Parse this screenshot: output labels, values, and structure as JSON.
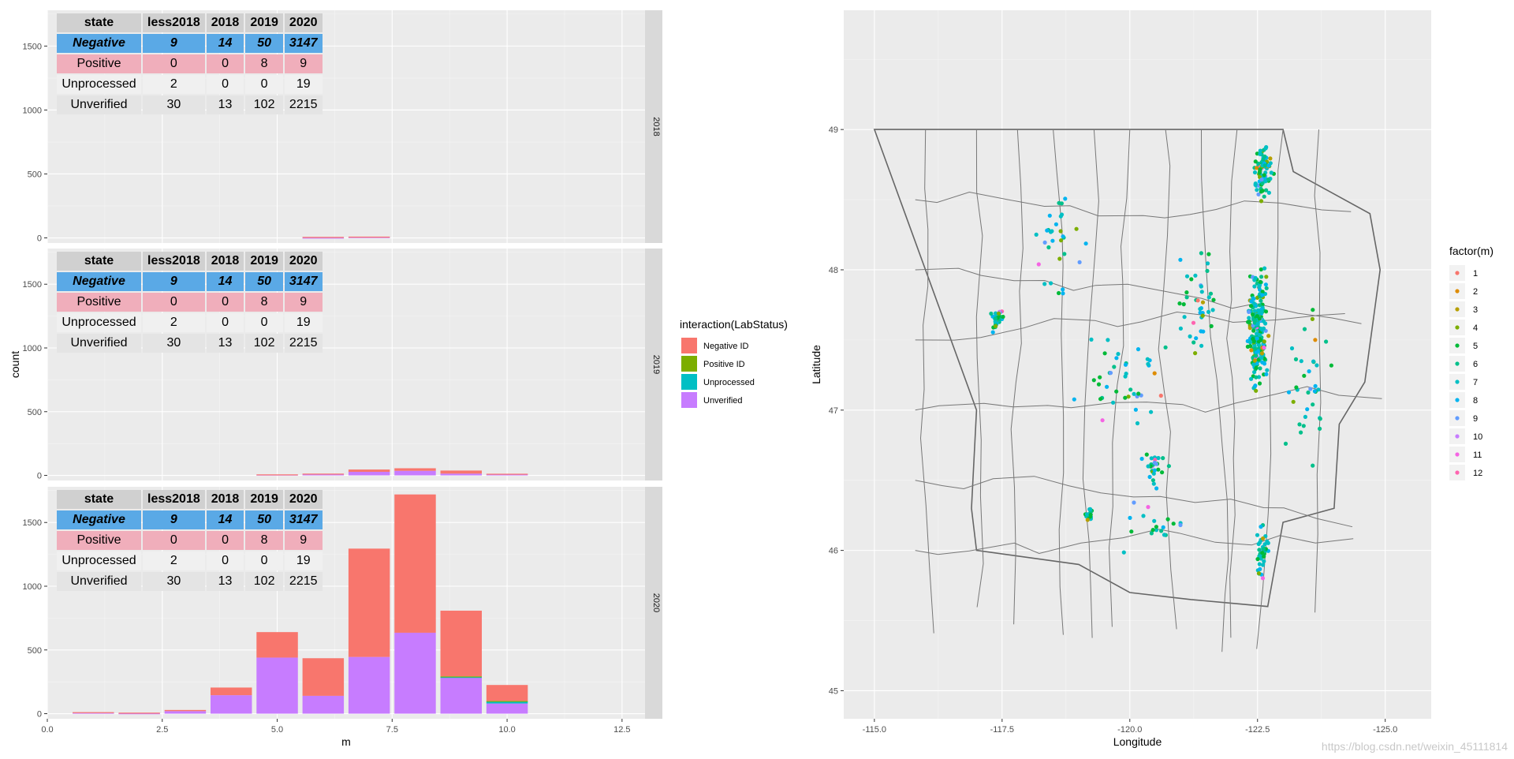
{
  "chart_data": [
    {
      "type": "bar",
      "subtype": "stacked-faceted",
      "xlabel": "m",
      "ylabel": "count",
      "xlim": [
        0,
        13
      ],
      "ylim": [
        -40,
        1780
      ],
      "x_ticks": [
        "0.0",
        "2.5",
        "5.0",
        "7.5",
        "10.0",
        "12.5"
      ],
      "y_ticks": [
        "0",
        "500",
        "1000",
        "1500"
      ],
      "legend": {
        "title": "interaction(LabStatus)",
        "position": "right",
        "entries": [
          "Negative ID",
          "Positive ID",
          "Unprocessed",
          "Unverified"
        ]
      },
      "colors": {
        "Negative ID": "#F8766D",
        "Positive ID": "#7CAE00",
        "Unprocessed": "#00BFC4",
        "Unverified": "#C77CFF"
      },
      "panels": [
        {
          "strip": "2018",
          "bars": [
            {
              "x": 6,
              "negative": 6,
              "positive": 0,
              "unprocessed": 0,
              "unverified": 2
            },
            {
              "x": 7,
              "negative": 4,
              "positive": 0,
              "unprocessed": 0,
              "unverified": 6
            }
          ]
        },
        {
          "strip": "2019",
          "bars": [
            {
              "x": 5,
              "negative": 2,
              "positive": 0,
              "unprocessed": 0,
              "unverified": 6
            },
            {
              "x": 6,
              "negative": 5,
              "positive": 0,
              "unprocessed": 0,
              "unverified": 9
            },
            {
              "x": 7,
              "negative": 18,
              "positive": 0,
              "unprocessed": 0,
              "unverified": 28
            },
            {
              "x": 8,
              "negative": 20,
              "positive": 0,
              "unprocessed": 0,
              "unverified": 36
            },
            {
              "x": 9,
              "negative": 24,
              "positive": 0,
              "unprocessed": 0,
              "unverified": 14
            },
            {
              "x": 10,
              "negative": 4,
              "positive": 0,
              "unprocessed": 0,
              "unverified": 9
            }
          ]
        },
        {
          "strip": "2020",
          "bars": [
            {
              "x": 1,
              "negative": 5,
              "positive": 0,
              "unprocessed": 0,
              "unverified": 7
            },
            {
              "x": 2,
              "negative": 5,
              "positive": 0,
              "unprocessed": 0,
              "unverified": 3
            },
            {
              "x": 3,
              "negative": 9,
              "positive": 0,
              "unprocessed": 0,
              "unverified": 20
            },
            {
              "x": 4,
              "negative": 60,
              "positive": 0,
              "unprocessed": 0,
              "unverified": 145
            },
            {
              "x": 5,
              "negative": 200,
              "positive": 0,
              "unprocessed": 0,
              "unverified": 440
            },
            {
              "x": 6,
              "negative": 295,
              "positive": 0,
              "unprocessed": 0,
              "unverified": 140
            },
            {
              "x": 7,
              "negative": 850,
              "positive": 0,
              "unprocessed": 0,
              "unverified": 445
            },
            {
              "x": 8,
              "negative": 1085,
              "positive": 0,
              "unprocessed": 0,
              "unverified": 635
            },
            {
              "x": 9,
              "negative": 515,
              "positive": 5,
              "unprocessed": 3,
              "unverified": 285
            },
            {
              "x": 10,
              "negative": 125,
              "positive": 4,
              "unprocessed": 16,
              "unverified": 80
            }
          ]
        }
      ],
      "table": {
        "headers": [
          "state",
          "less2018",
          "2018",
          "2019",
          "2020"
        ],
        "rows": [
          [
            "Negative",
            "9",
            "14",
            "50",
            "3147"
          ],
          [
            "Positive",
            "0",
            "0",
            "8",
            "9"
          ],
          [
            "Unprocessed",
            "2",
            "0",
            "0",
            "19"
          ],
          [
            "Unverified",
            "30",
            "13",
            "102",
            "2215"
          ]
        ]
      }
    },
    {
      "type": "scatter",
      "subtype": "map",
      "xlabel": "Longitude",
      "ylabel": "Latitude",
      "xlim": [
        -114.4,
        -125.9
      ],
      "ylim": [
        44.8,
        49.85
      ],
      "x_ticks": [
        "-115.0",
        "-117.5",
        "-120.0",
        "-122.5",
        "-125.0"
      ],
      "y_ticks": [
        "45",
        "46",
        "47",
        "48",
        "49"
      ],
      "legend": {
        "title": "factor(m)",
        "position": "right",
        "entries": [
          "1",
          "2",
          "3",
          "4",
          "5",
          "6",
          "7",
          "8",
          "9",
          "10",
          "11",
          "12"
        ],
        "colors": [
          "#F8766D",
          "#DE8C00",
          "#B79F00",
          "#7CAE00",
          "#00BA38",
          "#00C08B",
          "#00BFC4",
          "#00B4F0",
          "#619CFF",
          "#C77CFF",
          "#F564E3",
          "#FF64B0"
        ]
      },
      "state_outline": [
        [
          -115.0,
          49.0
        ],
        [
          -123.0,
          49.0
        ],
        [
          -123.2,
          48.7
        ],
        [
          -124.7,
          48.4
        ],
        [
          -124.9,
          48.0
        ],
        [
          -124.6,
          47.2
        ],
        [
          -124.1,
          46.9
        ],
        [
          -124.0,
          46.3
        ],
        [
          -123.0,
          46.2
        ],
        [
          -122.7,
          45.6
        ],
        [
          -121.2,
          45.65
        ],
        [
          -120.0,
          45.7
        ],
        [
          -119.0,
          45.9
        ],
        [
          -117.0,
          46.0
        ],
        [
          -116.9,
          46.3
        ],
        [
          -117.0,
          47.0
        ],
        [
          -115.0,
          49.0
        ]
      ],
      "clusters": [
        {
          "lon": -122.5,
          "lat": 47.6,
          "count": 220,
          "spread": [
            0.25,
            0.55
          ]
        },
        {
          "lon": -122.6,
          "lat": 48.7,
          "count": 90,
          "spread": [
            0.25,
            0.25
          ]
        },
        {
          "lon": -122.6,
          "lat": 46.0,
          "count": 40,
          "spread": [
            0.15,
            0.3
          ]
        },
        {
          "lon": -117.4,
          "lat": 47.65,
          "count": 40,
          "spread": [
            0.15,
            0.1
          ]
        },
        {
          "lon": -120.5,
          "lat": 46.6,
          "count": 25,
          "spread": [
            0.3,
            0.15
          ]
        },
        {
          "lon": -119.2,
          "lat": 46.25,
          "count": 18,
          "spread": [
            0.1,
            0.06
          ]
        },
        {
          "lon": -119.8,
          "lat": 47.2,
          "count": 40,
          "spread": [
            1.2,
            0.5
          ]
        },
        {
          "lon": -118.5,
          "lat": 48.2,
          "count": 30,
          "spread": [
            0.8,
            0.5
          ]
        },
        {
          "lon": -121.3,
          "lat": 47.8,
          "count": 40,
          "spread": [
            0.6,
            0.6
          ]
        },
        {
          "lon": -123.5,
          "lat": 47.2,
          "count": 35,
          "spread": [
            0.6,
            0.7
          ]
        },
        {
          "lon": -120.5,
          "lat": 46.2,
          "count": 20,
          "spread": [
            0.8,
            0.3
          ]
        }
      ],
      "watermark": "https://blog.csdn.net/weixin_45111814"
    }
  ]
}
